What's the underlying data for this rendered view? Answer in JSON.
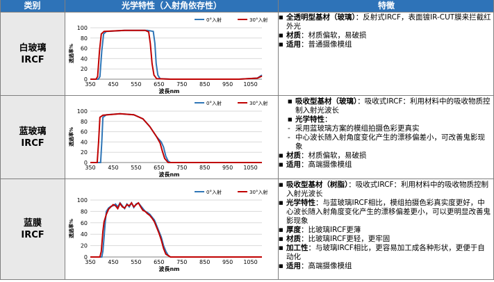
{
  "header": {
    "category": "类别",
    "optics": "光学特性（入射角依存性）",
    "features": "特徵"
  },
  "colors": {
    "header_bg": "#2e73b8",
    "category_bg": "#e9e9e9",
    "series_0deg": "#2e75b6",
    "series_30deg": "#c00000"
  },
  "rows": [
    {
      "category": [
        "白玻璃",
        "IRCF"
      ],
      "features": [
        {
          "style": "b",
          "key": "全透明型基材（玻璃）",
          "text": "：反射式IRCF，表面镀IR-CUT膜来拦截红外光"
        },
        {
          "style": "b",
          "key": "材质",
          "text": "：材质偏软，易破损"
        },
        {
          "style": "b",
          "key": "适用",
          "text": "：普通摄像模组"
        }
      ]
    },
    {
      "category": [
        "蓝玻璃",
        "IRCF"
      ],
      "features": [
        {
          "style": "b2",
          "key": "吸收型基材（玻璃）",
          "text": "：吸收式IRCF：利用材料中的吸收物质控制入射光波长"
        },
        {
          "style": "b2",
          "key": "光学特性",
          "text": "："
        },
        {
          "style": "d",
          "key": "",
          "text": "采用蓝玻璃方案的模组拍摄色彩更真实"
        },
        {
          "style": "d",
          "key": "",
          "text": "中心波长随入射角度变化产生的漂移偏差小，可改善鬼影现象"
        },
        {
          "style": "b",
          "key": "材质",
          "text": "：材质偏软，易破损"
        },
        {
          "style": "b",
          "key": "适用",
          "text": "：高端摄像模组"
        }
      ]
    },
    {
      "category": [
        "蓝膜",
        "IRCF"
      ],
      "features": [
        {
          "style": "b",
          "key": "吸收型基材（树脂）",
          "text": "：吸收式IRCF：利用材料中的吸收物质控制入射光波长"
        },
        {
          "style": "b",
          "key": "光学特性",
          "text": "：与蓝玻璃IRCF相比，模组拍摄色彩真实度更好，中心波长随入射角度变化产生的漂移偏差更小，可以更明显改善鬼影现象"
        },
        {
          "style": "b",
          "key": "厚度",
          "text": "：比玻璃IRCF更薄"
        },
        {
          "style": "b",
          "key": "材质",
          "text": "：比玻璃IRCF更轻，更牢固"
        },
        {
          "style": "b",
          "key": "加工性",
          "text": "：与玻璃IRCF相比，更容易加工成各种形状，更便于自动化"
        },
        {
          "style": "b",
          "key": "适用",
          "text": "：高端摄像模组"
        }
      ]
    }
  ],
  "chart_data": [
    {
      "type": "line",
      "xlabel": "波長nm",
      "ylabel": "透過率%",
      "xlim": [
        350,
        1100
      ],
      "ylim": [
        0,
        100
      ],
      "xticks": [
        350,
        450,
        550,
        650,
        750,
        850,
        950,
        1050
      ],
      "yticks": [
        0,
        20,
        40,
        60,
        80,
        100
      ],
      "series": [
        {
          "name": "0°入射",
          "x": [
            350,
            385,
            392,
            400,
            408,
            420,
            500,
            600,
            625,
            632,
            638,
            645,
            655,
            700,
            850,
            1000,
            1080,
            1100
          ],
          "y": [
            0,
            0,
            5,
            55,
            88,
            93,
            95,
            95,
            93,
            70,
            30,
            8,
            1,
            0,
            0,
            0,
            2,
            8
          ]
        },
        {
          "name": "30°入射",
          "x": [
            350,
            375,
            382,
            390,
            398,
            410,
            500,
            590,
            605,
            612,
            620,
            628,
            640,
            700,
            850,
            1000,
            1080,
            1100
          ],
          "y": [
            0,
            0,
            5,
            55,
            88,
            93,
            95,
            95,
            92,
            70,
            30,
            8,
            1,
            0,
            0,
            0,
            2,
            6
          ]
        }
      ]
    },
    {
      "type": "line",
      "xlabel": "波長nm",
      "ylabel": "透過率%",
      "xlim": [
        350,
        1100
      ],
      "ylim": [
        0,
        100
      ],
      "xticks": [
        350,
        450,
        550,
        650,
        750,
        850,
        950,
        1050
      ],
      "yticks": [
        0,
        20,
        40,
        60,
        80,
        100
      ],
      "series": [
        {
          "name": "0°入射",
          "x": [
            350,
            395,
            400,
            405,
            420,
            480,
            540,
            580,
            610,
            640,
            660,
            670,
            680,
            690,
            700,
            750,
            1100
          ],
          "y": [
            0,
            0,
            40,
            88,
            93,
            95,
            93,
            85,
            70,
            50,
            40,
            30,
            12,
            3,
            0,
            0,
            0
          ]
        },
        {
          "name": "30°入射",
          "x": [
            350,
            380,
            386,
            392,
            405,
            480,
            540,
            580,
            610,
            640,
            655,
            665,
            675,
            690,
            750,
            1100
          ],
          "y": [
            0,
            0,
            40,
            88,
            92,
            95,
            93,
            85,
            70,
            50,
            38,
            22,
            8,
            0,
            0,
            0
          ]
        }
      ]
    },
    {
      "type": "line",
      "xlabel": "波長nm",
      "ylabel": "透過率%",
      "xlim": [
        350,
        1100
      ],
      "ylim": [
        0,
        100
      ],
      "xticks": [
        350,
        450,
        550,
        650,
        750,
        850,
        950,
        1050
      ],
      "yticks": [
        0,
        20,
        40,
        60,
        80,
        100
      ],
      "series": [
        {
          "name": "0°入射",
          "x": [
            350,
            400,
            405,
            410,
            415,
            420,
            430,
            440,
            450,
            460,
            470,
            480,
            490,
            500,
            510,
            520,
            530,
            540,
            550,
            560,
            570,
            580,
            590,
            600,
            610,
            620,
            630,
            640,
            650,
            660,
            670,
            680,
            690,
            700,
            1100
          ],
          "y": [
            0,
            0,
            10,
            35,
            60,
            80,
            86,
            89,
            90,
            93,
            88,
            95,
            90,
            85,
            93,
            88,
            95,
            87,
            93,
            95,
            90,
            85,
            80,
            78,
            75,
            70,
            65,
            55,
            45,
            35,
            20,
            10,
            3,
            0,
            0
          ]
        },
        {
          "name": "30°入射",
          "x": [
            350,
            392,
            398,
            405,
            410,
            420,
            430,
            440,
            450,
            460,
            470,
            480,
            490,
            500,
            510,
            520,
            530,
            540,
            550,
            560,
            570,
            580,
            590,
            600,
            610,
            620,
            630,
            640,
            650,
            660,
            670,
            680,
            700,
            1100
          ],
          "y": [
            0,
            0,
            10,
            45,
            62,
            75,
            84,
            88,
            92,
            90,
            85,
            94,
            88,
            86,
            92,
            90,
            95,
            88,
            92,
            95,
            88,
            82,
            80,
            76,
            73,
            68,
            62,
            52,
            42,
            30,
            15,
            5,
            0,
            0
          ]
        }
      ]
    }
  ]
}
